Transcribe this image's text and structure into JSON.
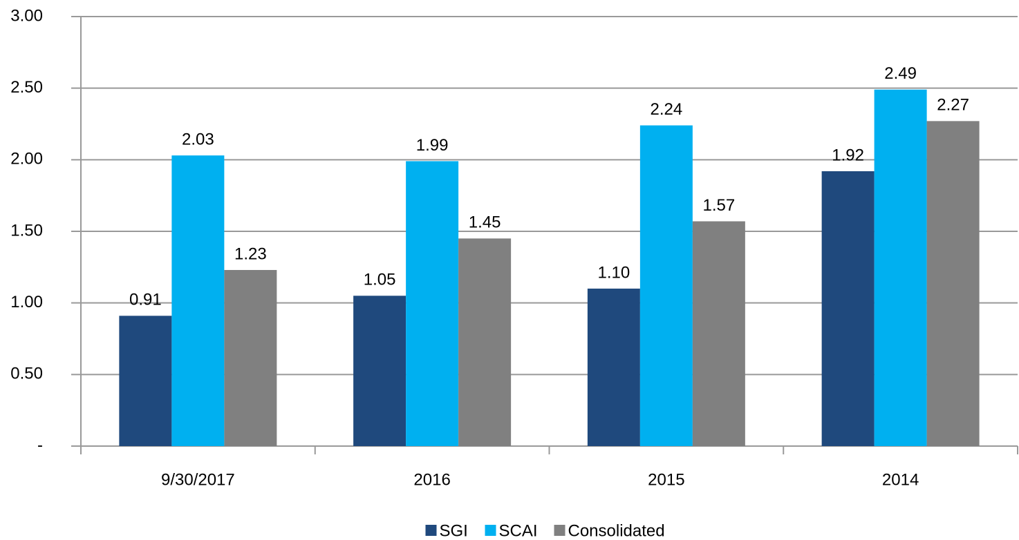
{
  "chart_data": {
    "type": "bar",
    "categories": [
      "9/30/2017",
      "2016",
      "2015",
      "2014"
    ],
    "series": [
      {
        "name": "SGI",
        "color": "#1f497d",
        "values": [
          0.91,
          1.05,
          1.1,
          1.92
        ],
        "value_labels": [
          "0.91",
          "1.05",
          "1.10",
          "1.92"
        ]
      },
      {
        "name": "SCAI",
        "color": "#00b0f0",
        "values": [
          2.03,
          1.99,
          2.24,
          2.49
        ],
        "value_labels": [
          "2.03",
          "1.99",
          "2.24",
          "2.49"
        ]
      },
      {
        "name": "Consolidated",
        "color": "#808080",
        "values": [
          1.23,
          1.45,
          1.57,
          2.27
        ],
        "value_labels": [
          "1.23",
          "1.45",
          "1.57",
          "2.27"
        ]
      }
    ],
    "ylim": [
      0,
      3
    ],
    "yticks": [
      {
        "value": 0,
        "label": "-"
      },
      {
        "value": 0.5,
        "label": "0.50"
      },
      {
        "value": 1,
        "label": "1.00"
      },
      {
        "value": 1.5,
        "label": "1.50"
      },
      {
        "value": 2,
        "label": "2.00"
      },
      {
        "value": 2.5,
        "label": "2.50"
      },
      {
        "value": 3,
        "label": "3.00"
      }
    ],
    "grid": true,
    "legend": "bottom"
  }
}
